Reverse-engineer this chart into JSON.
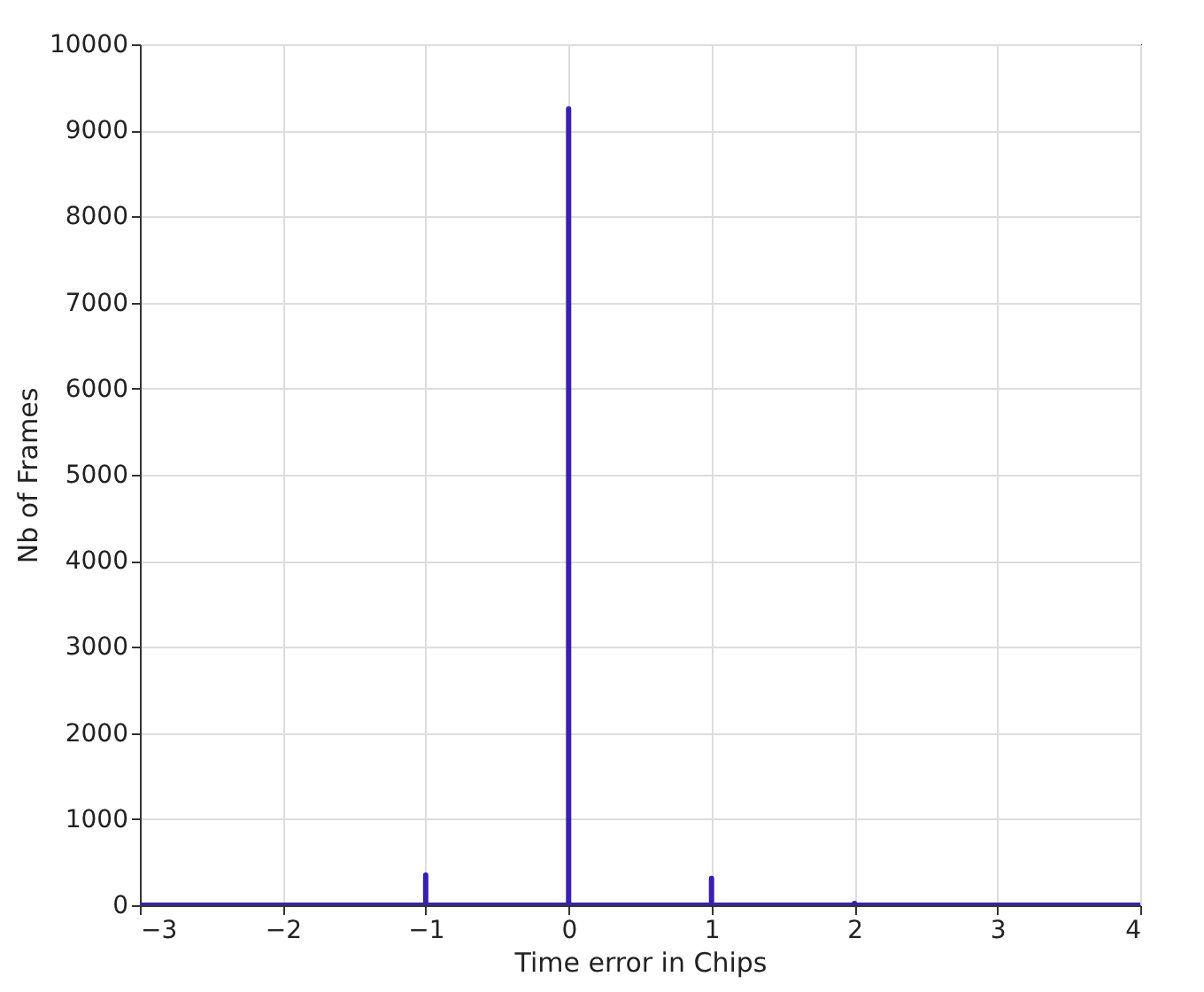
{
  "chart_data": {
    "type": "line",
    "xlabel": "Time error in Chips",
    "ylabel": "Nb of Frames",
    "x": [
      -3,
      -1,
      -1,
      -1,
      0,
      0,
      0,
      1,
      1,
      1,
      2,
      2,
      2,
      4
    ],
    "series": [
      {
        "color": "#3a20b0",
        "values": [
          0,
          0,
          350,
          0,
          0,
          9250,
          0,
          0,
          310,
          0,
          0,
          20,
          0,
          0
        ]
      }
    ],
    "xlim": [
      -3,
      4
    ],
    "xticks": [
      -3,
      -2,
      -1,
      0,
      1,
      2,
      3,
      4
    ],
    "ylim": [
      0,
      10000
    ],
    "yticks": [
      0,
      1000,
      2000,
      3000,
      4000,
      5000,
      6000,
      7000,
      8000,
      9000,
      10000
    ],
    "grid": true
  }
}
